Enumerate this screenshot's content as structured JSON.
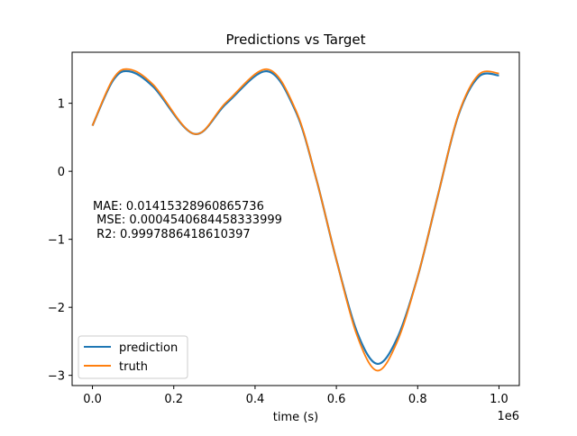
{
  "chart_data": {
    "type": "line",
    "title": "Predictions vs Target",
    "xlabel": "time (s)",
    "ylabel": "",
    "x_offset_text": "1e6",
    "xlim": [
      -0.05,
      1.05
    ],
    "ylim": [
      -3.15,
      1.75
    ],
    "xticks": [
      0.0,
      0.2,
      0.4,
      0.6,
      0.8,
      1.0
    ],
    "xtick_labels": [
      "0.0",
      "0.2",
      "0.4",
      "0.6",
      "0.8",
      "1.0"
    ],
    "yticks": [
      -3,
      -2,
      -1,
      0,
      1
    ],
    "ytick_labels": [
      "−3",
      "−2",
      "−1",
      "0",
      "1"
    ],
    "grid": false,
    "legend_position": "lower-left",
    "annotation_lines": [
      "MAE: 0.01415328960865736",
      " MSE: 0.0004540684458333999",
      " R2: 0.9997886418610397"
    ],
    "x": [
      0.0,
      0.05,
      0.09,
      0.15,
      0.25,
      0.33,
      0.43,
      0.5,
      0.55,
      0.6,
      0.65,
      0.7,
      0.75,
      0.8,
      0.85,
      0.9,
      0.95,
      1.0
    ],
    "series": [
      {
        "name": "prediction",
        "color": "#1f77b4",
        "values": [
          0.67,
          1.33,
          1.47,
          1.24,
          0.55,
          1.0,
          1.47,
          0.88,
          -0.1,
          -1.3,
          -2.35,
          -2.83,
          -2.45,
          -1.55,
          -0.35,
          0.82,
          1.39,
          1.41
        ]
      },
      {
        "name": "truth",
        "color": "#ff7f0e",
        "values": [
          0.67,
          1.35,
          1.5,
          1.27,
          0.55,
          1.02,
          1.5,
          0.9,
          -0.1,
          -1.3,
          -2.4,
          -2.93,
          -2.5,
          -1.55,
          -0.35,
          0.83,
          1.42,
          1.44
        ]
      }
    ]
  }
}
